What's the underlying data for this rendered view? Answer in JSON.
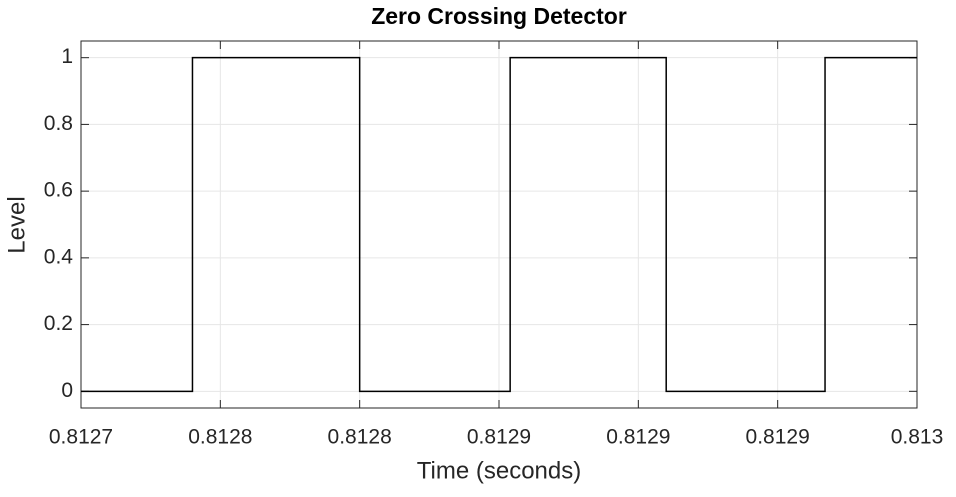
{
  "chart_data": {
    "type": "line",
    "title": "Zero Crossing Detector",
    "x_label": "Time (seconds)",
    "y_label": "Level",
    "x": [
      0.8127,
      0.81274,
      0.81274,
      0.8128,
      0.8128,
      0.812854,
      0.812854,
      0.81291,
      0.81291,
      0.812967,
      0.812967,
      0.813
    ],
    "series": [
      {
        "color": "#000000",
        "values": [
          0,
          0,
          1,
          1,
          0,
          0,
          1,
          1,
          0,
          0,
          1,
          1
        ]
      }
    ],
    "xlim": [
      0.8127,
      0.813
    ],
    "xticks": [
      0.8127,
      {
        "value": 0.81275,
        "label": "0.8128"
      },
      0.8128,
      {
        "value": 0.81285,
        "label": "0.8129"
      },
      0.8129,
      {
        "value": 0.81295,
        "label": "0.8129"
      },
      0.813
    ],
    "ylim": [
      -0.05,
      1.05
    ],
    "yticks": [
      0,
      0.2,
      0.4,
      0.6,
      0.8,
      1
    ],
    "grid": true
  }
}
